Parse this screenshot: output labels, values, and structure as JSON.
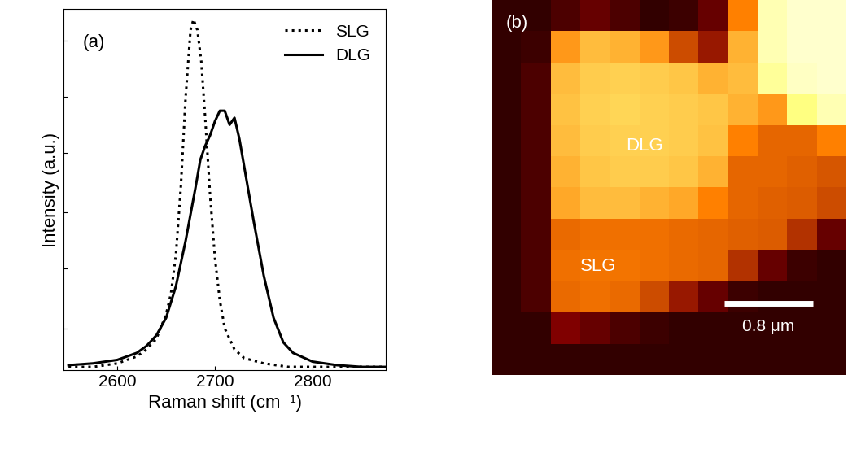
{
  "chart_data": [
    {
      "type": "line",
      "label": "(a)",
      "x_label": "Raman shift (cm⁻¹)",
      "y_label": "Intensity (a.u.)",
      "xlim": [
        2545,
        2875
      ],
      "ylim": [
        0,
        1.03
      ],
      "xticks": [
        2600,
        2700,
        2800
      ],
      "yticks": [
        0.12,
        0.29,
        0.45,
        0.62,
        0.78,
        0.94
      ],
      "tick_labels": "x",
      "legend": "upper right",
      "series": [
        {
          "name": "SLG",
          "color": "#000000",
          "line_style": "dotted",
          "x": [
            2550,
            2575,
            2600,
            2620,
            2630,
            2640,
            2650,
            2655,
            2660,
            2665,
            2670,
            2675,
            2678,
            2682,
            2686,
            2690,
            2695,
            2700,
            2705,
            2710,
            2720,
            2730,
            2750,
            2775,
            2800,
            2875
          ],
          "values": [
            0.01,
            0.01,
            0.02,
            0.04,
            0.06,
            0.09,
            0.16,
            0.22,
            0.33,
            0.52,
            0.78,
            0.97,
            1.0,
            0.97,
            0.88,
            0.72,
            0.5,
            0.32,
            0.2,
            0.12,
            0.06,
            0.035,
            0.02,
            0.01,
            0.01,
            0.01
          ]
        },
        {
          "name": "DLG",
          "color": "#000000",
          "line_style": "solid",
          "x": [
            2550,
            2575,
            2600,
            2620,
            2630,
            2640,
            2650,
            2660,
            2670,
            2680,
            2685,
            2690,
            2695,
            2700,
            2705,
            2710,
            2715,
            2720,
            2725,
            2730,
            2740,
            2750,
            2760,
            2770,
            2780,
            2800,
            2825,
            2850,
            2875
          ],
          "values": [
            0.015,
            0.02,
            0.03,
            0.05,
            0.07,
            0.1,
            0.15,
            0.24,
            0.37,
            0.52,
            0.6,
            0.64,
            0.67,
            0.71,
            0.74,
            0.74,
            0.7,
            0.72,
            0.66,
            0.58,
            0.42,
            0.27,
            0.15,
            0.08,
            0.05,
            0.025,
            0.015,
            0.01,
            0.01
          ]
        }
      ]
    },
    {
      "type": "heatmap",
      "label": "(b)",
      "tick_labels": false,
      "xlim": [
        0,
        3.2
      ],
      "ylim": [
        0,
        3.4
      ],
      "color_range": [
        0,
        1
      ],
      "annotations": [
        "DLG",
        "SLG"
      ],
      "scale_bar": {
        "length": 0.8,
        "label": "0.8 μm"
      },
      "cells": [
        [
          0.1,
          0.1,
          0.15,
          0.2,
          0.15,
          0.1,
          0.12,
          0.2,
          0.5,
          0.85,
          0.9,
          0.9
        ],
        [
          0.1,
          0.12,
          0.55,
          0.62,
          0.6,
          0.55,
          0.4,
          0.3,
          0.6,
          0.85,
          0.9,
          0.9
        ],
        [
          0.1,
          0.15,
          0.62,
          0.65,
          0.66,
          0.65,
          0.64,
          0.6,
          0.62,
          0.8,
          0.88,
          0.9
        ],
        [
          0.1,
          0.15,
          0.63,
          0.66,
          0.67,
          0.66,
          0.65,
          0.64,
          0.6,
          0.55,
          0.75,
          0.85
        ],
        [
          0.1,
          0.15,
          0.62,
          0.65,
          0.66,
          0.66,
          0.65,
          0.63,
          0.5,
          0.45,
          0.45,
          0.5
        ],
        [
          0.1,
          0.15,
          0.6,
          0.64,
          0.65,
          0.65,
          0.64,
          0.6,
          0.45,
          0.45,
          0.44,
          0.42
        ],
        [
          0.1,
          0.15,
          0.58,
          0.62,
          0.62,
          0.6,
          0.58,
          0.5,
          0.45,
          0.44,
          0.43,
          0.4
        ],
        [
          0.1,
          0.15,
          0.46,
          0.47,
          0.47,
          0.47,
          0.46,
          0.45,
          0.44,
          0.43,
          0.35,
          0.2
        ],
        [
          0.1,
          0.15,
          0.47,
          0.48,
          0.48,
          0.47,
          0.46,
          0.45,
          0.35,
          0.2,
          0.12,
          0.1
        ],
        [
          0.1,
          0.15,
          0.46,
          0.47,
          0.46,
          0.4,
          0.3,
          0.2,
          0.12,
          0.1,
          0.1,
          0.1
        ],
        [
          0.1,
          0.1,
          0.25,
          0.2,
          0.15,
          0.12,
          0.1,
          0.1,
          0.1,
          0.1,
          0.1,
          0.1
        ],
        [
          0.1,
          0.1,
          0.1,
          0.1,
          0.1,
          0.1,
          0.1,
          0.1,
          0.1,
          0.1,
          0.1,
          0.1
        ]
      ]
    }
  ]
}
